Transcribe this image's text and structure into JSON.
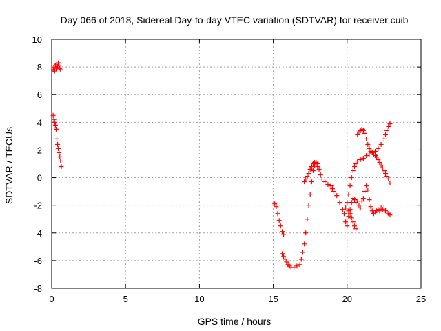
{
  "chart_data": {
    "type": "scatter",
    "title": "Day 066 of 2018, Sidereal Day-to-day VTEC variation (SDTVAR) for receiver cuib",
    "xlabel": "GPS time / hours",
    "ylabel": "SDTVAR / TECUs",
    "xlim": [
      0,
      25
    ],
    "ylim": [
      -8,
      10
    ],
    "x_ticks": [
      0,
      5,
      10,
      15,
      20,
      25
    ],
    "y_ticks": [
      -8,
      -6,
      -4,
      -2,
      0,
      2,
      4,
      6,
      8,
      10
    ],
    "x_tick_labels": [
      "0",
      "5",
      "10",
      "15",
      "20",
      "25"
    ],
    "y_tick_labels": [
      "-8",
      "-6",
      "-4",
      "-2",
      "0",
      "2",
      "4",
      "6",
      "8",
      "10"
    ],
    "grid": true,
    "legend": "none",
    "marker": "plus",
    "color": "#ff0000",
    "series": [
      {
        "segments": [
          [
            [
              0.1,
              7.8
            ],
            [
              0.15,
              8.0
            ],
            [
              0.2,
              7.7
            ],
            [
              0.25,
              8.1
            ],
            [
              0.3,
              7.9
            ],
            [
              0.35,
              8.2
            ],
            [
              0.4,
              8.0
            ],
            [
              0.45,
              8.3
            ],
            [
              0.5,
              8.1
            ],
            [
              0.55,
              7.9
            ],
            [
              0.6,
              7.8
            ]
          ],
          [
            [
              0.1,
              4.5
            ],
            [
              0.15,
              4.2
            ],
            [
              0.2,
              4.0
            ],
            [
              0.25,
              3.8
            ],
            [
              0.3,
              3.5
            ],
            [
              0.35,
              2.8
            ],
            [
              0.4,
              2.4
            ],
            [
              0.45,
              2.1
            ],
            [
              0.5,
              1.8
            ],
            [
              0.55,
              1.5
            ],
            [
              0.6,
              1.2
            ],
            [
              0.65,
              0.8
            ]
          ],
          [
            [
              15.1,
              -1.9
            ],
            [
              15.2,
              -2.1
            ],
            [
              15.3,
              -2.6
            ],
            [
              15.4,
              -3.1
            ],
            [
              15.5,
              -3.5
            ],
            [
              15.6,
              -3.9
            ],
            [
              15.7,
              -4.1
            ]
          ],
          [
            [
              15.6,
              -5.5
            ],
            [
              15.7,
              -5.7
            ],
            [
              15.8,
              -5.9
            ],
            [
              15.9,
              -6.1
            ],
            [
              16.0,
              -6.3
            ],
            [
              16.1,
              -6.4
            ],
            [
              16.2,
              -6.5
            ],
            [
              16.4,
              -6.5
            ],
            [
              16.6,
              -6.4
            ],
            [
              16.8,
              -6.3
            ],
            [
              16.9,
              -5.9
            ],
            [
              17.0,
              -5.4
            ],
            [
              17.1,
              -4.8
            ],
            [
              17.2,
              -4.0
            ],
            [
              17.3,
              -3.0
            ],
            [
              17.4,
              -2.0
            ],
            [
              17.5,
              -1.2
            ],
            [
              17.6,
              -0.3
            ],
            [
              17.7,
              0.5
            ],
            [
              17.8,
              0.9
            ],
            [
              17.9,
              1.1
            ],
            [
              18.0,
              1.0
            ],
            [
              18.1,
              0.6
            ],
            [
              18.2,
              0.2
            ],
            [
              18.3,
              -0.1
            ],
            [
              18.5,
              -0.3
            ],
            [
              18.7,
              -0.5
            ],
            [
              18.9,
              -0.6
            ],
            [
              19.0,
              -0.8
            ],
            [
              19.1,
              -1.0
            ],
            [
              19.3,
              -1.3
            ],
            [
              19.5,
              -1.8
            ],
            [
              19.7,
              -2.3
            ],
            [
              19.8,
              -2.6
            ],
            [
              19.9,
              -3.2
            ],
            [
              20.0,
              -3.5
            ],
            [
              20.1,
              -2.8
            ],
            [
              20.2,
              -2.3
            ],
            [
              20.3,
              -1.8
            ],
            [
              20.4,
              -1.5
            ],
            [
              20.5,
              -1.6
            ],
            [
              20.6,
              -1.8
            ],
            [
              20.7,
              -1.7
            ],
            [
              20.8,
              -2.0
            ],
            [
              20.9,
              -2.2
            ],
            [
              21.0,
              -1.7
            ],
            [
              21.1,
              -1.5
            ],
            [
              21.2,
              -1.0
            ],
            [
              21.3,
              -0.6
            ],
            [
              21.4,
              -0.9
            ],
            [
              21.5,
              -1.6
            ],
            [
              21.6,
              -2.1
            ],
            [
              21.7,
              -2.4
            ],
            [
              21.8,
              -2.6
            ],
            [
              21.9,
              -2.5
            ],
            [
              22.0,
              -2.4
            ],
            [
              22.1,
              -2.3
            ],
            [
              22.2,
              -2.4
            ],
            [
              22.3,
              -2.2
            ],
            [
              22.4,
              -2.3
            ],
            [
              22.5,
              -2.2
            ],
            [
              22.6,
              -2.4
            ],
            [
              22.7,
              -2.5
            ],
            [
              22.8,
              -2.6
            ],
            [
              22.9,
              -2.7
            ]
          ],
          [
            [
              17.1,
              -0.3
            ],
            [
              17.2,
              -0.1
            ],
            [
              17.3,
              0.1
            ],
            [
              17.4,
              0.3
            ],
            [
              17.5,
              0.6
            ],
            [
              17.6,
              0.8
            ],
            [
              17.7,
              1.0
            ],
            [
              17.8,
              1.1
            ],
            [
              17.9,
              1.0
            ],
            [
              18.0,
              0.8
            ]
          ],
          [
            [
              19.9,
              -2.2
            ],
            [
              20.0,
              -1.8
            ],
            [
              20.1,
              -1.2
            ],
            [
              20.2,
              -0.6
            ],
            [
              20.3,
              0.0
            ],
            [
              20.4,
              0.5
            ],
            [
              20.5,
              0.8
            ],
            [
              20.6,
              1.0
            ],
            [
              20.7,
              1.2
            ],
            [
              20.9,
              1.3
            ],
            [
              21.1,
              1.4
            ],
            [
              21.3,
              1.6
            ],
            [
              21.5,
              1.7
            ],
            [
              21.7,
              1.8
            ],
            [
              21.9,
              1.9
            ],
            [
              22.1,
              2.1
            ],
            [
              22.3,
              2.4
            ],
            [
              22.5,
              2.8
            ],
            [
              22.6,
              3.1
            ],
            [
              22.7,
              3.4
            ],
            [
              22.8,
              3.7
            ],
            [
              22.9,
              3.9
            ]
          ],
          [
            [
              20.7,
              3.1
            ],
            [
              20.8,
              3.3
            ],
            [
              20.9,
              3.4
            ],
            [
              21.0,
              3.5
            ],
            [
              21.1,
              3.4
            ],
            [
              21.2,
              3.2
            ],
            [
              21.3,
              2.8
            ],
            [
              21.4,
              2.4
            ],
            [
              21.5,
              2.1
            ],
            [
              21.6,
              1.9
            ],
            [
              21.7,
              1.8
            ],
            [
              21.8,
              1.7
            ],
            [
              21.9,
              1.6
            ],
            [
              22.0,
              1.5
            ],
            [
              22.1,
              1.3
            ],
            [
              22.2,
              1.1
            ],
            [
              22.3,
              0.9
            ],
            [
              22.4,
              0.7
            ],
            [
              22.5,
              0.5
            ],
            [
              22.6,
              0.3
            ],
            [
              22.7,
              0.1
            ],
            [
              22.8,
              -0.1
            ],
            [
              22.9,
              -0.4
            ]
          ],
          [
            [
              20.1,
              -2.4
            ],
            [
              20.2,
              -2.6
            ],
            [
              20.3,
              -2.9
            ],
            [
              20.4,
              -3.2
            ],
            [
              20.5,
              -3.5
            ],
            [
              20.6,
              -3.7
            ]
          ]
        ]
      }
    ]
  }
}
